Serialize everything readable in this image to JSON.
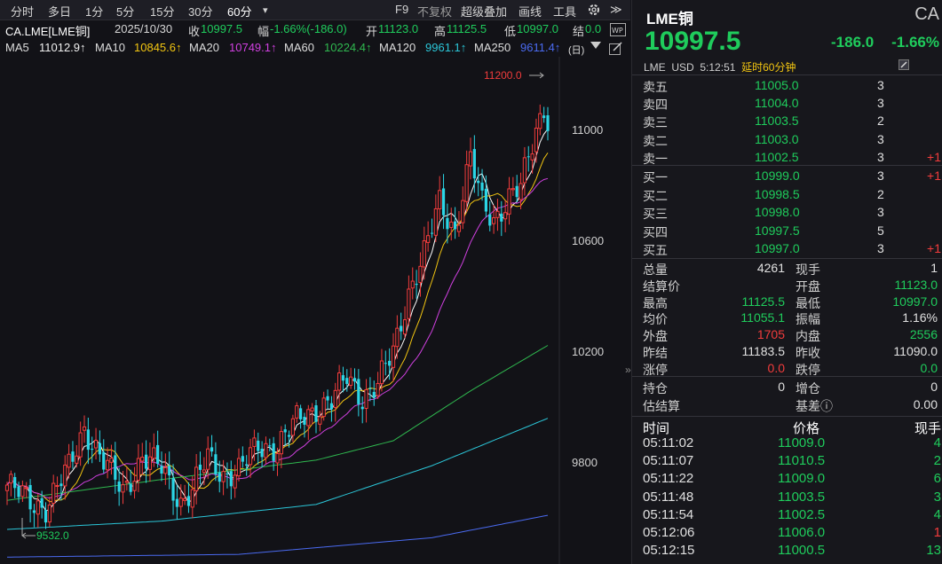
{
  "toolbar": {
    "periods": [
      "分时",
      "多日",
      "1分",
      "5分",
      "15分",
      "30分",
      "60分"
    ],
    "selected": "60分",
    "more_periods": "▾",
    "f9": "F9",
    "no_adjust": "不复权",
    "overlay": "超级叠加",
    "draw": "画线",
    "tools": "工具",
    "expand": "≫"
  },
  "info": {
    "symbol": "CA.LME[LME铜]",
    "date": "2025/10/30",
    "close_label": "收",
    "close": "10997.5",
    "amp_label": "幅",
    "amp": "-1.66%(-186.0)",
    "open_label": "开",
    "open": "11123.0",
    "high_label": "高",
    "high": "11125.5",
    "low_label": "低",
    "low": "10997.0",
    "settle_label": "结",
    "settle": "0.0"
  },
  "ma": [
    {
      "label": "MA5",
      "value": "11012.9↑",
      "color": "#ffffff"
    },
    {
      "label": "MA10",
      "value": "10845.6↑",
      "color": "#f2c511"
    },
    {
      "label": "MA20",
      "value": "10749.1↑",
      "color": "#d040e0"
    },
    {
      "label": "MA60",
      "value": "10224.4↑",
      "color": "#2fb84f"
    },
    {
      "label": "MA120",
      "value": "9961.1↑",
      "color": "#2bc6d8"
    },
    {
      "label": "MA250",
      "value": "9611.4↑",
      "color": "#4a6af0"
    }
  ],
  "ma_suffix": "(日)",
  "chart_data": {
    "type": "candlestick",
    "price_ticks": [
      "11000",
      "10600",
      "10200",
      "9800"
    ],
    "max_label": "11200.0",
    "min_label": "9532.0"
  },
  "quote": {
    "name": "LME铜",
    "code": "CA",
    "price": "10997.5",
    "change": "-186.0",
    "percent": "-1.66%",
    "exchange": "LME",
    "currency": "USD",
    "time": "5:12:51",
    "delay": "延时60分钟",
    "asks": [
      {
        "label": "卖五",
        "price": "11005.0",
        "vol": "3",
        "chg": ""
      },
      {
        "label": "卖四",
        "price": "11004.0",
        "vol": "3",
        "chg": ""
      },
      {
        "label": "卖三",
        "price": "11003.5",
        "vol": "2",
        "chg": ""
      },
      {
        "label": "卖二",
        "price": "11003.0",
        "vol": "3",
        "chg": ""
      },
      {
        "label": "卖一",
        "price": "11002.5",
        "vol": "3",
        "chg": "+1"
      }
    ],
    "bids": [
      {
        "label": "买一",
        "price": "10999.0",
        "vol": "3",
        "chg": "+1"
      },
      {
        "label": "买二",
        "price": "10998.5",
        "vol": "2",
        "chg": ""
      },
      {
        "label": "买三",
        "price": "10998.0",
        "vol": "3",
        "chg": ""
      },
      {
        "label": "买四",
        "price": "10997.5",
        "vol": "5",
        "chg": ""
      },
      {
        "label": "买五",
        "price": "10997.0",
        "vol": "3",
        "chg": "+1"
      }
    ],
    "stats": [
      {
        "l1": "总量",
        "v1": "4261",
        "c1": "wht",
        "l2": "现手",
        "v2": "1",
        "c2": "wht"
      },
      {
        "l1": "结算价",
        "v1": "",
        "c1": "wht",
        "l2": "开盘",
        "v2": "11123.0",
        "c2": "grn"
      },
      {
        "l1": "最高",
        "v1": "11125.5",
        "c1": "grn",
        "l2": "最低",
        "v2": "10997.0",
        "c2": "grn"
      },
      {
        "l1": "均价",
        "v1": "11055.1",
        "c1": "grn",
        "l2": "振幅",
        "v2": "1.16%",
        "c2": "wht"
      },
      {
        "l1": "外盘",
        "v1": "1705",
        "c1": "red",
        "l2": "内盘",
        "v2": "2556",
        "c2": "grn"
      },
      {
        "l1": "昨结",
        "v1": "11183.5",
        "c1": "wht",
        "l2": "昨收",
        "v2": "11090.0",
        "c2": "wht"
      },
      {
        "l1": "涨停",
        "v1": "0.0",
        "c1": "red",
        "l2": "跌停",
        "v2": "0.0",
        "c2": "grn"
      }
    ],
    "stats2": [
      {
        "l1": "持仓",
        "v1": "0",
        "c1": "wht",
        "l2": "增仓",
        "v2": "0",
        "c2": "wht"
      },
      {
        "l1": "估结算",
        "v1": "",
        "c1": "wht",
        "l2": "基差ⓘ",
        "v2": "0.00",
        "c2": "wht"
      }
    ],
    "tick_headers": {
      "time": "时间",
      "price": "价格",
      "vol": "现手"
    },
    "ticks": [
      {
        "time": "05:11:02",
        "price": "11009.0",
        "vol": "4",
        "vc": "grn"
      },
      {
        "time": "05:11:07",
        "price": "11010.5",
        "vol": "2",
        "vc": "grn"
      },
      {
        "time": "05:11:22",
        "price": "11009.0",
        "vol": "6",
        "vc": "grn"
      },
      {
        "time": "05:11:48",
        "price": "11003.5",
        "vol": "3",
        "vc": "grn"
      },
      {
        "time": "05:11:54",
        "price": "11002.5",
        "vol": "4",
        "vc": "grn"
      },
      {
        "time": "05:12:06",
        "price": "11006.0",
        "vol": "1",
        "vc": "red"
      },
      {
        "time": "05:12:15",
        "price": "11000.5",
        "vol": "13",
        "vc": "grn"
      }
    ]
  }
}
